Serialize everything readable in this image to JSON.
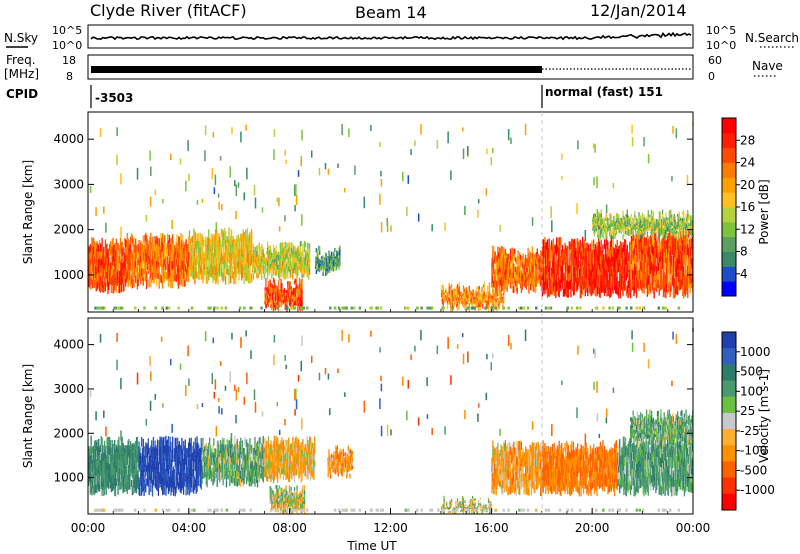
{
  "header": {
    "station": "Clyde River (fitACF)",
    "beam": "Beam 14",
    "date": "12/Jan/2014"
  },
  "status_panels": {
    "nsky_label": "N.Sky",
    "nsky_ticks": [
      "10^5",
      "10^0"
    ],
    "nsearch_label": "N.Search",
    "nsearch_ticks": [
      "10^5",
      "10^0"
    ],
    "freq_label_line1": "Freq.",
    "freq_label_line2": "[MHz]",
    "freq_ticks": [
      "18",
      "8"
    ],
    "nave_label": "Nave",
    "nave_ticks": [
      "60",
      "0"
    ],
    "cpid_label": "CPID",
    "cpid_segments": [
      {
        "label": "-3503",
        "start_hour": 0
      },
      {
        "label": "normal (fast) 151",
        "start_hour": 18
      }
    ]
  },
  "chart_data": [
    {
      "type": "heatmap",
      "name": "power-panel",
      "ylabel": "Slant Range [km]",
      "xlabel": "",
      "ylim": [
        180,
        4600
      ],
      "y_ticks": [
        "1000",
        "2000",
        "3000",
        "4000"
      ],
      "colorbar_label": "Power [dB]",
      "colorbar_ticks": [
        "4",
        "8",
        "12",
        "16",
        "20",
        "24",
        "28"
      ],
      "colorbar_colors": [
        "#0000ff",
        "#1a4ec8",
        "#3a8a6a",
        "#5aa060",
        "#7dc43a",
        "#b4d23a",
        "#ffc020",
        "#ffa000",
        "#ff7a00",
        "#ff4a00",
        "#ff2000",
        "#ff0000"
      ],
      "regions": [
        {
          "t0": 0.0,
          "t1": 1.5,
          "r0": 700,
          "r1": 1700,
          "value": 24
        },
        {
          "t0": 1.5,
          "t1": 4.0,
          "r0": 800,
          "r1": 1800,
          "value": 22
        },
        {
          "t0": 4.0,
          "t1": 6.5,
          "r0": 900,
          "r1": 1900,
          "value": 16
        },
        {
          "t0": 6.5,
          "t1": 8.8,
          "r0": 1000,
          "r1": 1600,
          "value": 14
        },
        {
          "t0": 7.0,
          "t1": 8.5,
          "r0": 300,
          "r1": 800,
          "value": 24
        },
        {
          "t0": 9.0,
          "t1": 10.0,
          "r0": 1100,
          "r1": 1500,
          "value": 8
        },
        {
          "t0": 14.0,
          "t1": 16.5,
          "r0": 300,
          "r1": 700,
          "value": 20
        },
        {
          "t0": 16.0,
          "t1": 18.0,
          "r0": 700,
          "r1": 1500,
          "value": 22
        },
        {
          "t0": 18.0,
          "t1": 21.5,
          "r0": 600,
          "r1": 1700,
          "value": 26
        },
        {
          "t0": 21.5,
          "t1": 24.0,
          "r0": 600,
          "r1": 1900,
          "value": 24
        },
        {
          "t0": 20.0,
          "t1": 24.0,
          "r0": 1900,
          "r1": 2300,
          "value": 12
        }
      ]
    },
    {
      "type": "heatmap",
      "name": "velocity-panel",
      "xlabel": "Time UT",
      "ylabel": "Slant Range [km]",
      "ylim": [
        180,
        4600
      ],
      "xlim": [
        0,
        24
      ],
      "x_ticks": [
        "00:00",
        "04:00",
        "08:00",
        "12:00",
        "16:00",
        "20:00",
        "00:00"
      ],
      "y_ticks": [
        "1000",
        "2000",
        "3000",
        "4000"
      ],
      "colorbar_label": "Velocity [m s-1]",
      "colorbar_ticks": [
        "1000",
        "500",
        "100",
        "25",
        "-25",
        "-100",
        "-500",
        "-1000"
      ],
      "colorbar_colors": [
        "#2040b0",
        "#3060c0",
        "#2e7d6a",
        "#4a9a70",
        "#6ac040",
        "#c8c8c8",
        "#ffb030",
        "#ff9000",
        "#ff6000",
        "#ff3000",
        "#ff0000"
      ],
      "regions": [
        {
          "t0": 0.0,
          "t1": 2.0,
          "r0": 700,
          "r1": 1800,
          "value": 300
        },
        {
          "t0": 2.0,
          "t1": 4.5,
          "r0": 700,
          "r1": 1800,
          "value": 800
        },
        {
          "t0": 4.5,
          "t1": 7.0,
          "r0": 900,
          "r1": 1800,
          "value": 150
        },
        {
          "t0": 7.0,
          "t1": 9.0,
          "r0": 1000,
          "r1": 1800,
          "value": -100
        },
        {
          "t0": 7.2,
          "t1": 8.6,
          "r0": 250,
          "r1": 700,
          "value": 0
        },
        {
          "t0": 9.5,
          "t1": 10.5,
          "r0": 1100,
          "r1": 1600,
          "value": -200
        },
        {
          "t0": 14.0,
          "t1": 16.0,
          "r0": 250,
          "r1": 450,
          "value": 0
        },
        {
          "t0": 16.0,
          "t1": 18.0,
          "r0": 700,
          "r1": 1700,
          "value": -150
        },
        {
          "t0": 18.0,
          "t1": 21.0,
          "r0": 700,
          "r1": 1700,
          "value": -300
        },
        {
          "t0": 21.0,
          "t1": 24.0,
          "r0": 700,
          "r1": 1800,
          "value": 200
        },
        {
          "t0": 21.5,
          "t1": 24.0,
          "r0": 1800,
          "r1": 2400,
          "value": 150
        }
      ]
    }
  ]
}
